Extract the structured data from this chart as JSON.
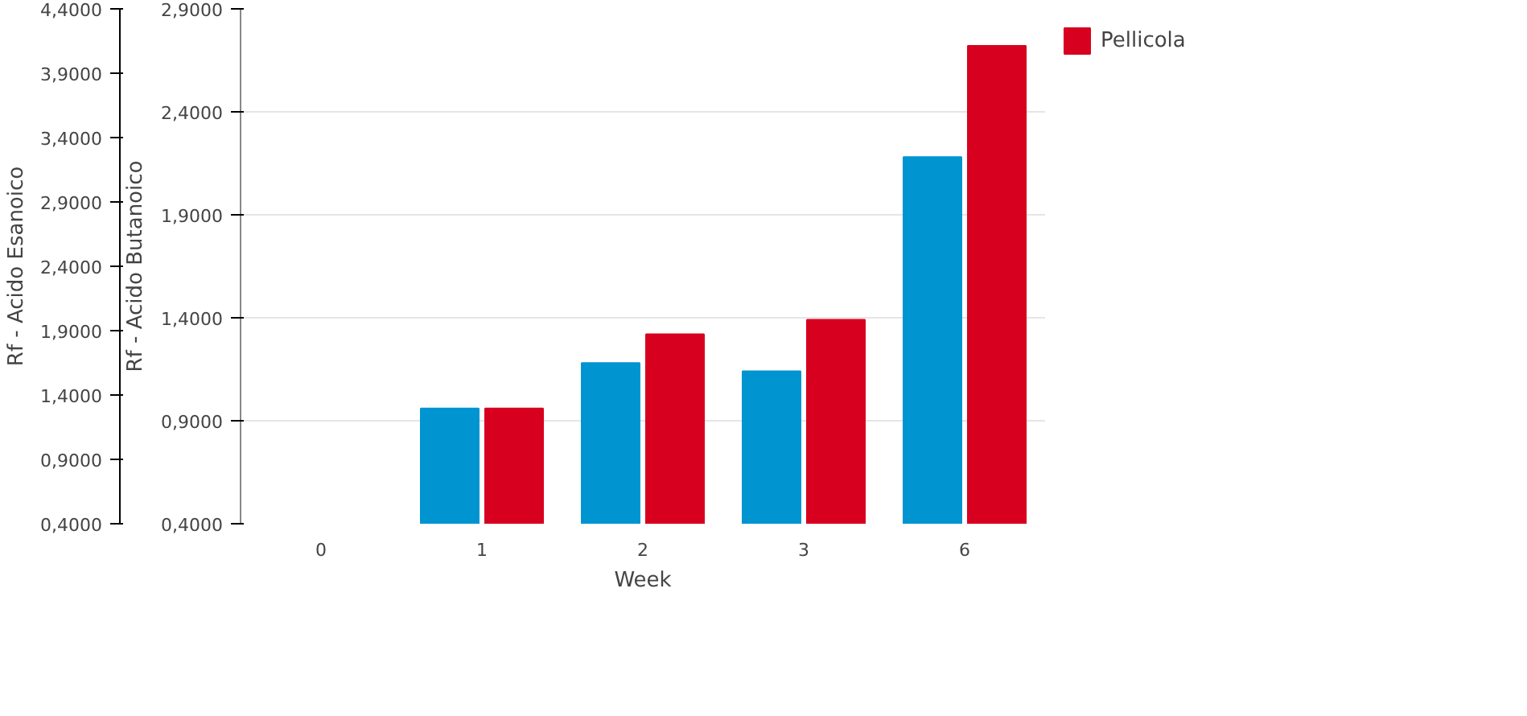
{
  "chart_data": {
    "type": "bar",
    "categories": [
      "0",
      "1",
      "2",
      "3",
      "6"
    ],
    "xlabel": "Week",
    "ylabel": "Rf - Acido Butanoico",
    "y2label": "Rf - Acido Esanoico",
    "ylim": [
      0.4,
      2.9
    ],
    "yticks": [
      {
        "value": 0.4,
        "label": "0,4000"
      },
      {
        "value": 0.9,
        "label": "0,9000"
      },
      {
        "value": 1.4,
        "label": "1,4000"
      },
      {
        "value": 1.9,
        "label": "1,9000"
      },
      {
        "value": 2.4,
        "label": "2,4000"
      },
      {
        "value": 2.9,
        "label": "2,9000"
      }
    ],
    "y2lim": [
      0.4,
      4.4
    ],
    "y2ticks": [
      {
        "value": 0.4,
        "label": "0,4000"
      },
      {
        "value": 0.9,
        "label": "0,9000"
      },
      {
        "value": 1.4,
        "label": "1,4000"
      },
      {
        "value": 1.9,
        "label": "1,9000"
      },
      {
        "value": 2.4,
        "label": "2,4000"
      },
      {
        "value": 2.9,
        "label": "2,9000"
      },
      {
        "value": 3.4,
        "label": "3,4000"
      },
      {
        "value": 3.9,
        "label": "3,9000"
      },
      {
        "value": 4.4,
        "label": "4,4000"
      }
    ],
    "series": [
      {
        "color": "#0094d0",
        "values": [
          null,
          0.96,
          1.18,
          1.14,
          2.18
        ]
      },
      {
        "name": "Pellicola",
        "color": "#d7001f",
        "values": [
          null,
          0.96,
          1.32,
          1.39,
          2.72
        ]
      }
    ],
    "grid": "y",
    "legend": "top right"
  }
}
